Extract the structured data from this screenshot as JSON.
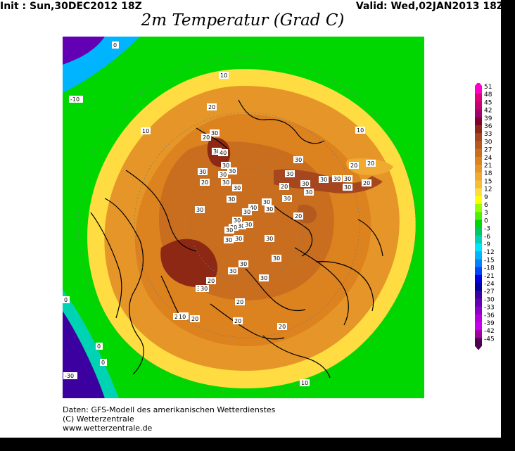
{
  "header": {
    "init": "Init : Sun,30DEC2012 18Z",
    "valid": "Valid: Wed,02JAN2013 18Z",
    "title": "2m Temperatur (Grad C)"
  },
  "footer": {
    "line1": "Daten: GFS-Modell des amerikanischen Wetterdienstes",
    "line2": "(C) Wetterzentrale",
    "line3": "www.wetterzentrale.de"
  },
  "colors": {
    "pos51": "#ff00c8",
    "pos48": "#e0007a",
    "pos45": "#c8006e",
    "pos42": "#a00070",
    "pos39": "#82002d",
    "pos36": "#8c2814",
    "pos33": "#a5461e",
    "pos30": "#b45a1e",
    "pos27": "#c86e1e",
    "pos24": "#dc821e",
    "pos21": "#e69628",
    "pos18": "#f0aa32",
    "pos15": "#f5be37",
    "pos12": "#ffdc41",
    "pos9": "#ffff00",
    "pos6": "#96ff00",
    "pos3": "#50f000",
    "zero": "#00d700",
    "neg3": "#00c864",
    "neg6": "#00d2b4",
    "neg9": "#00e6ff",
    "neg12": "#00b4ff",
    "neg15": "#0082ff",
    "neg18": "#0046ff",
    "neg21": "#0000dc",
    "neg24": "#0000a0",
    "neg27": "#3c00a0",
    "neg30": "#6400b4",
    "neg33": "#8c00c8",
    "neg36": "#b400dc",
    "neg39": "#c800f0",
    "neg42": "#a000a0",
    "neg45": "#500050"
  },
  "scale": {
    "labels": [
      "51",
      "48",
      "45",
      "42",
      "39",
      "36",
      "33",
      "30",
      "27",
      "24",
      "21",
      "18",
      "15",
      "12",
      "9",
      "6",
      "3",
      "0",
      "-3",
      "-6",
      "-9",
      "-12",
      "-15",
      "-18",
      "-21",
      "-24",
      "-27",
      "-30",
      "-33",
      "-36",
      "-39",
      "-42",
      "-45"
    ]
  },
  "map_labels": {
    "m1": "0",
    "m2": "-10",
    "m3": "10",
    "m4": "10",
    "m5": "10",
    "m6": "20",
    "m7": "20",
    "m8": "30",
    "m9": "30",
    "m10": "40",
    "m11": "30",
    "m12": "30",
    "m13": "30",
    "m14": "30",
    "m15": "20",
    "m16": "30",
    "m17": "30",
    "m18": "30",
    "m19": "30",
    "m20": "20",
    "m21": "30",
    "m22": "30",
    "m23": "30",
    "m24": "30",
    "m25": "30",
    "m26": "30",
    "m27": "30",
    "m28": "20",
    "m29": "30",
    "m30": "40",
    "m31": "30",
    "m32": "30",
    "m33": "30",
    "m34": "30",
    "m35": "30",
    "m36": "30",
    "m37": "30",
    "m38": "30",
    "m39": "30",
    "m40": "30",
    "m41": "30",
    "m42": "30",
    "m43": "30",
    "m44": "30",
    "m45": "20",
    "m46": "20",
    "m47": "20",
    "m48": "30",
    "m49": "20",
    "m50": "10",
    "m51": "20",
    "m52": "20",
    "m53": "20",
    "m54": "20",
    "m55": "20",
    "m56": "0",
    "m57": "-30",
    "m58": "0",
    "m59": "0",
    "m60": "10",
    "m61": "30",
    "m62": "30",
    "m63": "30",
    "m64": "20"
  }
}
